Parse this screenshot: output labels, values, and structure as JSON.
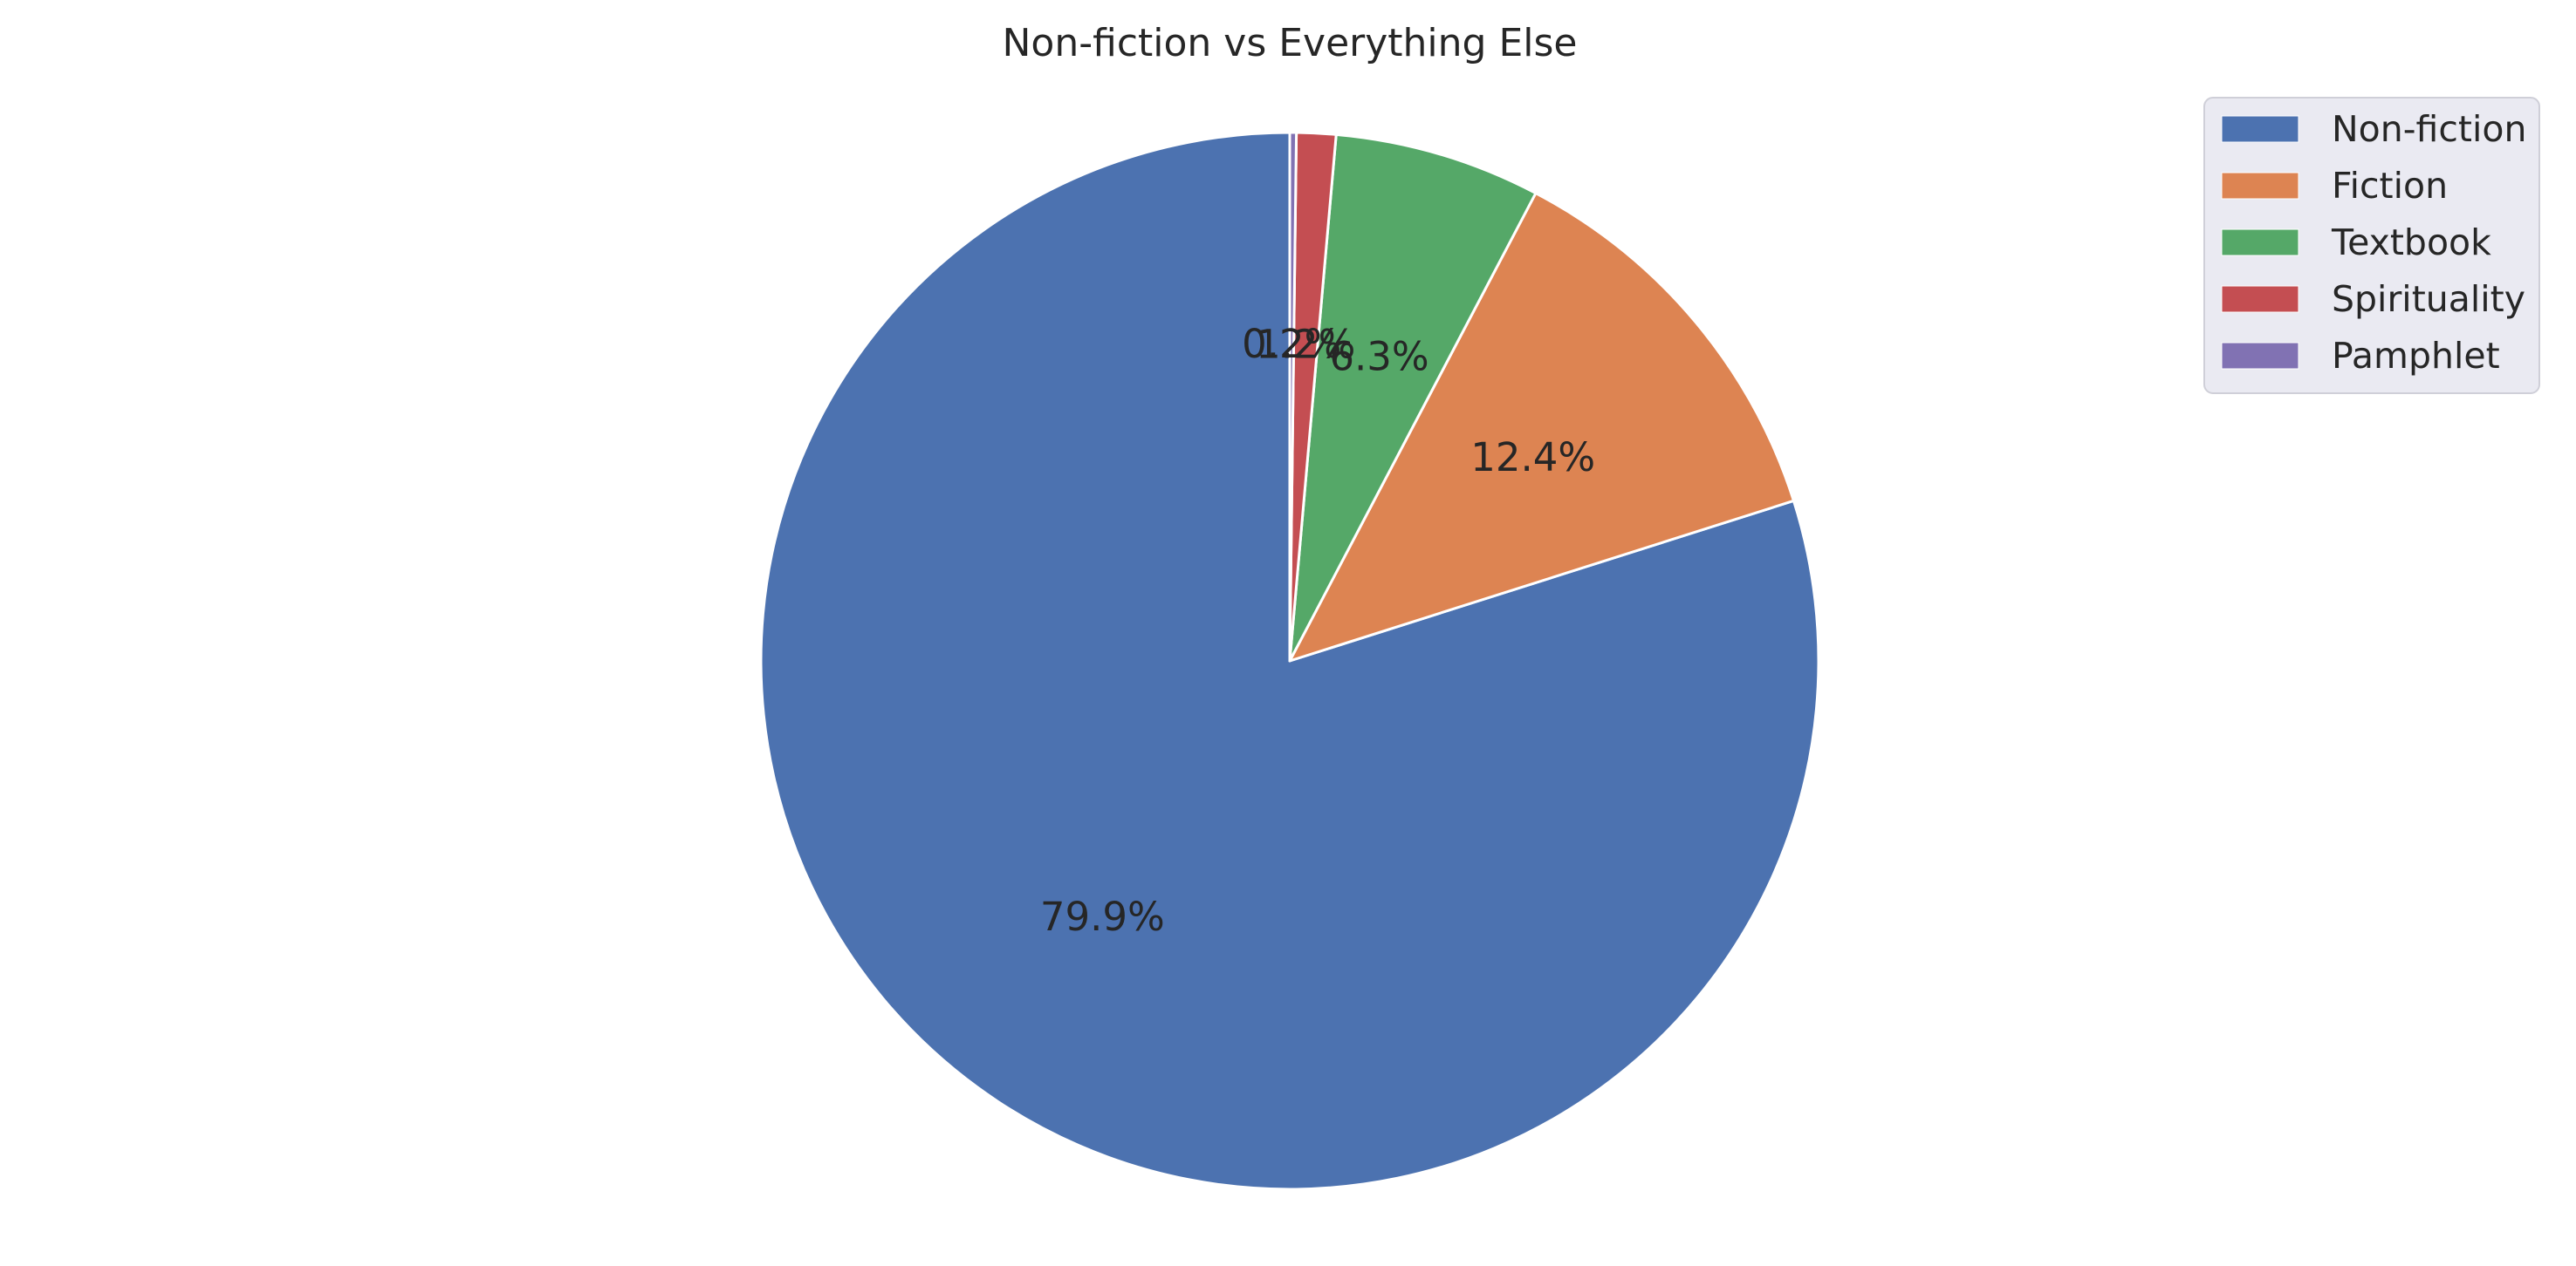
{
  "chart_data": {
    "type": "pie",
    "title": "Non-fiction vs Everything Else",
    "slices": [
      {
        "label": "Non-fiction",
        "value": 79.9,
        "value_label": "79.9%",
        "color": "#4c72b0"
      },
      {
        "label": "Fiction",
        "value": 12.4,
        "value_label": "12.4%",
        "color": "#dd8452"
      },
      {
        "label": "Textbook",
        "value": 6.3,
        "value_label": "6.3%",
        "color": "#55a868"
      },
      {
        "label": "Spirituality",
        "value": 1.2,
        "value_label": "1.2%",
        "color": "#c44e52"
      },
      {
        "label": "Pamphlet",
        "value": 0.2,
        "value_label": "0.2%",
        "color": "#8172b3"
      }
    ],
    "start_angle_deg": 90,
    "direction": "counterclockwise",
    "legend_position": "upper-right",
    "legend_background": "#eaeaf2",
    "edge_color": "#ffffff"
  }
}
